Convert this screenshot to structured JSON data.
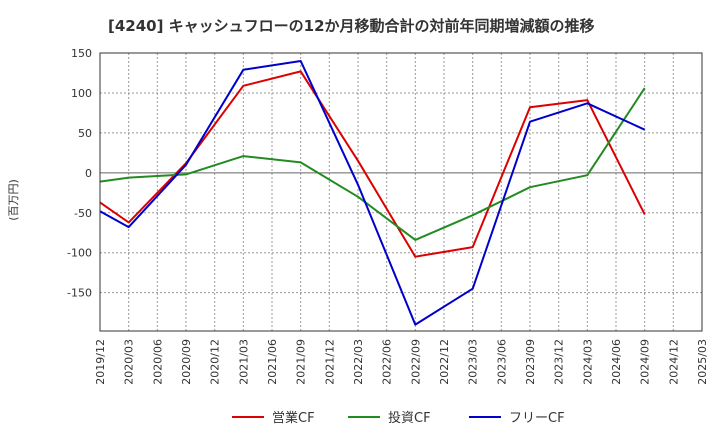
{
  "chart_data": {
    "type": "line",
    "title": "[4240]  キャッシュフローの12か月移動合計の対前年同期増減額の推移",
    "ylabel": "(百万円)",
    "xlabel": "",
    "ylim": [
      -198,
      150
    ],
    "y_ticks": [
      150,
      100,
      50,
      0,
      -50,
      -100,
      -150
    ],
    "x_ticks": [
      "2019/12",
      "2020/03",
      "2020/06",
      "2020/09",
      "2020/12",
      "2021/03",
      "2021/06",
      "2021/09",
      "2021/12",
      "2022/03",
      "2022/06",
      "2022/09",
      "2022/12",
      "2023/03",
      "2023/06",
      "2023/09",
      "2023/12",
      "2024/03",
      "2024/06",
      "2024/09",
      "2024/12",
      "2025/03"
    ],
    "grid": true,
    "legend_position": "bottom",
    "series": [
      {
        "name": "営業CF",
        "color": "#dd0000",
        "points": [
          {
            "x": "2019/12",
            "y": -37
          },
          {
            "x": "2020/03",
            "y": -62
          },
          {
            "x": "2020/09",
            "y": 12
          },
          {
            "x": "2021/03",
            "y": 109
          },
          {
            "x": "2021/09",
            "y": 127
          },
          {
            "x": "2022/03",
            "y": 15
          },
          {
            "x": "2022/09",
            "y": -105
          },
          {
            "x": "2023/03",
            "y": -93
          },
          {
            "x": "2023/09",
            "y": 82
          },
          {
            "x": "2024/03",
            "y": 91
          },
          {
            "x": "2024/09",
            "y": -52
          }
        ]
      },
      {
        "name": "投資CF",
        "color": "#228b22",
        "points": [
          {
            "x": "2019/12",
            "y": -11
          },
          {
            "x": "2020/03",
            "y": -6
          },
          {
            "x": "2020/09",
            "y": -2
          },
          {
            "x": "2021/03",
            "y": 21
          },
          {
            "x": "2021/09",
            "y": 13
          },
          {
            "x": "2022/03",
            "y": -30
          },
          {
            "x": "2022/09",
            "y": -84
          },
          {
            "x": "2023/03",
            "y": -53
          },
          {
            "x": "2023/09",
            "y": -18
          },
          {
            "x": "2024/03",
            "y": -3
          },
          {
            "x": "2024/09",
            "y": 106
          }
        ]
      },
      {
        "name": "フリーCF",
        "color": "#0000cc",
        "points": [
          {
            "x": "2019/12",
            "y": -48
          },
          {
            "x": "2020/03",
            "y": -68
          },
          {
            "x": "2020/09",
            "y": 10
          },
          {
            "x": "2021/03",
            "y": 129
          },
          {
            "x": "2021/09",
            "y": 140
          },
          {
            "x": "2022/03",
            "y": -15
          },
          {
            "x": "2022/09",
            "y": -190
          },
          {
            "x": "2023/03",
            "y": -145
          },
          {
            "x": "2023/09",
            "y": 64
          },
          {
            "x": "2024/03",
            "y": 87
          },
          {
            "x": "2024/09",
            "y": 54
          }
        ]
      }
    ]
  }
}
